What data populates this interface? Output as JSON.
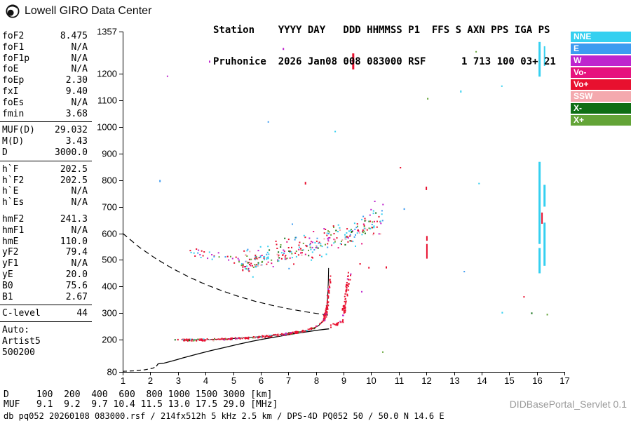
{
  "header": {
    "brand": "Lowell GIRO Data Center",
    "station_line1": "Station    YYYY DAY   DDD HHMMSS P1  FFS S AXN PPS IGA PS",
    "station_line2": "Pruhonice  2026 Jan08 008 083000 RSF      1 713 100 03+ 21"
  },
  "panel": {
    "groups": [
      {
        "rows": [
          [
            "foF2",
            "8.475"
          ],
          [
            "foF1",
            "N/A"
          ],
          [
            "foF1p",
            "N/A"
          ],
          [
            "foE",
            "N/A"
          ],
          [
            "foEp",
            "2.30"
          ],
          [
            "fxI",
            "9.40"
          ],
          [
            "foEs",
            "N/A"
          ],
          [
            "fmin",
            "3.68"
          ]
        ],
        "divider_after": true
      },
      {
        "rows": [
          [
            "MUF(D)",
            "29.032"
          ],
          [
            "M(D)",
            "3.43"
          ],
          [
            "D",
            "3000.0"
          ]
        ],
        "divider_after": true
      },
      {
        "rows": [
          [
            "h`F",
            "202.5"
          ],
          [
            "h`F2",
            "202.5"
          ],
          [
            "h`E",
            "N/A"
          ],
          [
            "h`Es",
            "N/A"
          ]
        ],
        "divider_after": false,
        "gap_after": true
      },
      {
        "rows": [
          [
            "hmF2",
            "241.3"
          ],
          [
            "hmF1",
            "N/A"
          ],
          [
            "hmE",
            "110.0"
          ],
          [
            "yF2",
            "79.4"
          ],
          [
            "yF1",
            "N/A"
          ],
          [
            "yE",
            "20.0"
          ],
          [
            "B0",
            "75.6"
          ],
          [
            "B1",
            "2.67"
          ]
        ],
        "divider_after": true
      },
      {
        "rows": [
          [
            "C-level",
            "44"
          ]
        ],
        "divider_after": true
      },
      {
        "rows": [
          [
            "Auto:",
            ""
          ],
          [
            "Artist5",
            ""
          ],
          [
            "500200",
            ""
          ]
        ],
        "divider_after": false
      }
    ]
  },
  "legend": [
    {
      "label": "NNE",
      "color": "#35D0F0"
    },
    {
      "label": "E",
      "color": "#3D9BF0"
    },
    {
      "label": "W",
      "color": "#BE25CE"
    },
    {
      "label": "Vo-",
      "color": "#E6127E"
    },
    {
      "label": "Vo+",
      "color": "#E8102F"
    },
    {
      "label": "SSW",
      "color": "#F4A9AE"
    },
    {
      "label": "X-",
      "color": "#0F6E14"
    },
    {
      "label": "X+",
      "color": "#63A437"
    }
  ],
  "footer": {
    "d_row": {
      "label": "D",
      "values": [
        "100",
        "200",
        "400",
        "600",
        "800",
        "1000",
        "1500",
        "3000"
      ],
      "unit": "[km]"
    },
    "muf_row": {
      "label": "MUF",
      "values": [
        "9.1",
        "9.2",
        "9.7",
        "10.4",
        "11.5",
        "13.0",
        "17.5",
        "29.0"
      ],
      "unit": "[MHz]"
    },
    "status": "db pq052 20260108 083000.rsf / 214fx512h 5 kHz 2.5 km / DPS-4D PQ052 50 / 50.0 N 14.6 E",
    "servlet": "DIDBasePortal_Servlet 0.1"
  },
  "chart_data": {
    "type": "scatter",
    "xlabel": "[MHz]",
    "ylabel": "[km]",
    "xlim": [
      1,
      17
    ],
    "ylim": [
      80,
      1357
    ],
    "grid": false,
    "x_ticks": [
      1,
      2,
      3,
      4,
      5,
      6,
      7,
      8,
      9,
      10,
      11,
      12,
      13,
      14,
      15,
      16,
      17
    ],
    "y_ticks": [
      80,
      200,
      300,
      400,
      500,
      600,
      700,
      800,
      900,
      1000,
      1100,
      1200,
      1357
    ],
    "traces": [
      {
        "name": "f-trace-first-hop",
        "f_range": [
          3.15,
          8.32
        ],
        "anchors": [
          [
            3.15,
            199
          ],
          [
            4.0,
            200
          ],
          [
            4.8,
            203
          ],
          [
            5.6,
            208
          ],
          [
            6.2,
            213
          ],
          [
            6.8,
            220
          ],
          [
            7.2,
            226
          ],
          [
            7.6,
            234
          ],
          [
            7.9,
            243
          ],
          [
            8.1,
            253
          ],
          [
            8.25,
            268
          ],
          [
            8.32,
            280
          ]
        ],
        "n": 230,
        "h_jitter": 3.5,
        "f_jitter": 0.03,
        "colors": {
          "Vo+": 0.68,
          "SSW": 0.1,
          "X+": 0.06,
          "W": 0.05,
          "NNE": 0.04,
          "Vo-": 0.04,
          "X-": 0.03
        }
      },
      {
        "name": "f-cusp-o-mode",
        "f_range": [
          8.3,
          8.52
        ],
        "anchors": [
          [
            8.3,
            275
          ],
          [
            8.36,
            298
          ],
          [
            8.41,
            328
          ],
          [
            8.45,
            366
          ],
          [
            8.48,
            402
          ],
          [
            8.52,
            438
          ]
        ],
        "n": 70,
        "h_jitter": 12,
        "f_jitter": 0.035,
        "colors": {
          "Vo+": 0.82,
          "W": 0.1,
          "SSW": 0.08
        }
      },
      {
        "name": "x-mode-flat",
        "f_range": [
          8.55,
          9.0
        ],
        "anchors": [
          [
            8.55,
            252
          ],
          [
            8.8,
            261
          ],
          [
            9.0,
            273
          ]
        ],
        "n": 16,
        "h_jitter": 5,
        "f_jitter": 0.02,
        "colors": {
          "Vo+": 0.9,
          "W": 0.1
        }
      },
      {
        "name": "f-cusp-x-mode",
        "f_range": [
          8.98,
          9.22
        ],
        "anchors": [
          [
            8.98,
            300
          ],
          [
            9.05,
            335
          ],
          [
            9.1,
            370
          ],
          [
            9.15,
            406
          ],
          [
            9.22,
            444
          ]
        ],
        "n": 60,
        "h_jitter": 13,
        "f_jitter": 0.05,
        "colors": {
          "Vo+": 0.8,
          "W": 0.12,
          "SSW": 0.08
        }
      },
      {
        "name": "second-hop-band",
        "f_range": [
          5.3,
          10.45
        ],
        "anchors": [
          [
            5.3,
            478
          ],
          [
            5.8,
            492
          ],
          [
            6.4,
            508
          ],
          [
            7.0,
            524
          ],
          [
            7.6,
            540
          ],
          [
            8.2,
            556
          ],
          [
            8.8,
            574
          ],
          [
            9.3,
            594
          ],
          [
            9.8,
            618
          ],
          [
            10.2,
            642
          ],
          [
            10.45,
            662
          ]
        ],
        "n": 300,
        "h_jitter": 20,
        "f_jitter": 0.04,
        "extras": [
          {
            "prob": 0.22,
            "dh": 40
          },
          {
            "prob": 0.08,
            "dh": -38
          }
        ],
        "colors": {
          "NNE": 0.22,
          "Vo+": 0.24,
          "X+": 0.14,
          "X-": 0.07,
          "E": 0.09,
          "W": 0.1,
          "SSW": 0.06,
          "Vo-": 0.08
        }
      },
      {
        "name": "mid-scatter-band",
        "f_range": [
          3.4,
          5.25
        ],
        "anchors": [
          [
            3.4,
            532
          ],
          [
            4.2,
            518
          ],
          [
            5.25,
            500
          ]
        ],
        "n": 30,
        "h_jitter": 16,
        "f_jitter": 0.05,
        "colors": {
          "W": 0.25,
          "Vo+": 0.28,
          "NNE": 0.2,
          "E": 0.15,
          "X+": 0.12
        }
      },
      {
        "name": "background-specks",
        "f_range": [
          1.3,
          16.8
        ],
        "anchors": [
          [
            1.3,
            700
          ],
          [
            16.8,
            700
          ]
        ],
        "n": 14,
        "h_jitter": 600,
        "f_jitter": 0,
        "colors": {
          "NNE": 0.3,
          "E": 0.15,
          "W": 0.15,
          "Vo+": 0.2,
          "X+": 0.2
        }
      }
    ],
    "lines": [
      {
        "name": "muf-transmission-curve-dashed",
        "dash": "8,5",
        "width": 1.2,
        "points": [
          [
            1.0,
            600
          ],
          [
            1.6,
            548
          ],
          [
            2.2,
            505
          ],
          [
            2.8,
            468
          ],
          [
            3.4,
            436
          ],
          [
            4.0,
            408
          ],
          [
            4.6,
            384
          ],
          [
            5.2,
            363
          ],
          [
            5.8,
            345
          ],
          [
            6.4,
            330
          ],
          [
            7.0,
            317
          ],
          [
            7.6,
            306
          ],
          [
            8.1,
            298
          ],
          [
            8.45,
            293
          ]
        ]
      },
      {
        "name": "profile-base-dashed",
        "dash": "6,4",
        "width": 1.2,
        "points": [
          [
            1.0,
            82
          ],
          [
            1.4,
            84
          ],
          [
            1.8,
            88
          ],
          [
            2.1,
            94
          ],
          [
            2.22,
            101
          ]
        ]
      },
      {
        "name": "true-height-profile",
        "dash": null,
        "width": 1.3,
        "points": [
          [
            2.22,
            101
          ],
          [
            2.28,
            110
          ],
          [
            2.5,
            113
          ],
          [
            2.8,
            121
          ],
          [
            3.2,
            133
          ],
          [
            3.7,
            147
          ],
          [
            4.2,
            160
          ],
          [
            4.7,
            172
          ],
          [
            5.2,
            184
          ],
          [
            5.7,
            195
          ],
          [
            6.2,
            205
          ],
          [
            6.7,
            214
          ],
          [
            7.2,
            223
          ],
          [
            7.7,
            231
          ],
          [
            8.1,
            237
          ],
          [
            8.35,
            240
          ],
          [
            8.475,
            241.3
          ]
        ]
      },
      {
        "name": "fitted-echo-trace",
        "dash": null,
        "width": 1.1,
        "points": [
          [
            3.2,
            200
          ],
          [
            4.0,
            201
          ],
          [
            4.8,
            204
          ],
          [
            5.6,
            209
          ],
          [
            6.2,
            214
          ],
          [
            6.8,
            221
          ],
          [
            7.2,
            227
          ],
          [
            7.6,
            234
          ],
          [
            7.9,
            243
          ],
          [
            8.1,
            254
          ],
          [
            8.25,
            270
          ],
          [
            8.34,
            294
          ],
          [
            8.4,
            330
          ],
          [
            8.43,
            372
          ],
          [
            8.45,
            420
          ],
          [
            8.46,
            470
          ]
        ]
      }
    ],
    "marks": [
      {
        "f": 3.0,
        "h1": 198,
        "h2": 204,
        "color": "Vo+",
        "w": 2
      },
      {
        "f": 2.9,
        "h1": 200,
        "h2": 203,
        "color": "X-",
        "w": 2
      },
      {
        "f": 9.35,
        "h1": 1215,
        "h2": 1275,
        "color": "Vo+",
        "w": 3
      },
      {
        "f": 6.82,
        "h1": 1288,
        "h2": 1296,
        "color": "W",
        "w": 2
      },
      {
        "f": 4.15,
        "h1": 1240,
        "h2": 1248,
        "color": "W",
        "w": 2
      },
      {
        "f": 2.35,
        "h1": 792,
        "h2": 800,
        "color": "E",
        "w": 2
      },
      {
        "f": 7.62,
        "h1": 783,
        "h2": 793,
        "color": "Vo+",
        "w": 2
      },
      {
        "f": 12.02,
        "h1": 505,
        "h2": 560,
        "color": "Vo+",
        "w": 2
      },
      {
        "f": 12.02,
        "h1": 572,
        "h2": 590,
        "color": "Vo+",
        "w": 2
      },
      {
        "f": 12.0,
        "h1": 762,
        "h2": 775,
        "color": "Vo+",
        "w": 2
      },
      {
        "f": 12.05,
        "h1": 1102,
        "h2": 1108,
        "color": "X+",
        "w": 2
      },
      {
        "f": 13.25,
        "h1": 1128,
        "h2": 1136,
        "color": "NNE",
        "w": 2
      },
      {
        "f": 11.2,
        "h1": 688,
        "h2": 694,
        "color": "E",
        "w": 2
      },
      {
        "f": 10.55,
        "h1": 468,
        "h2": 476,
        "color": "Vo+",
        "w": 2
      },
      {
        "f": 9.6,
        "h1": 482,
        "h2": 488,
        "color": "Vo+",
        "w": 2
      },
      {
        "f": 9.92,
        "h1": 468,
        "h2": 474,
        "color": "Vo+",
        "w": 2
      },
      {
        "f": 5.35,
        "h1": 458,
        "h2": 466,
        "color": "Vo+",
        "w": 2
      },
      {
        "f": 5.58,
        "h1": 455,
        "h2": 461,
        "color": "Vo+",
        "w": 2
      },
      {
        "f": 16.1,
        "h1": 560,
        "h2": 868,
        "color": "NNE",
        "w": 3
      },
      {
        "f": 16.1,
        "h1": 450,
        "h2": 545,
        "color": "NNE",
        "w": 3
      },
      {
        "f": 16.28,
        "h1": 478,
        "h2": 640,
        "color": "NNE",
        "w": 3
      },
      {
        "f": 16.28,
        "h1": 700,
        "h2": 782,
        "color": "NNE",
        "w": 3
      },
      {
        "f": 16.1,
        "h1": 1188,
        "h2": 1318,
        "color": "NNE",
        "w": 3
      },
      {
        "f": 16.28,
        "h1": 1228,
        "h2": 1302,
        "color": "NNE",
        "w": 2
      },
      {
        "f": 16.19,
        "h1": 636,
        "h2": 678,
        "color": "Vo+",
        "w": 2
      },
      {
        "f": 16.38,
        "h1": 292,
        "h2": 298,
        "color": "X+",
        "w": 2
      },
      {
        "f": 15.82,
        "h1": 297,
        "h2": 303,
        "color": "X-",
        "w": 2
      },
      {
        "f": 14.75,
        "h1": 299,
        "h2": 305,
        "color": "NNE",
        "w": 2
      }
    ]
  }
}
